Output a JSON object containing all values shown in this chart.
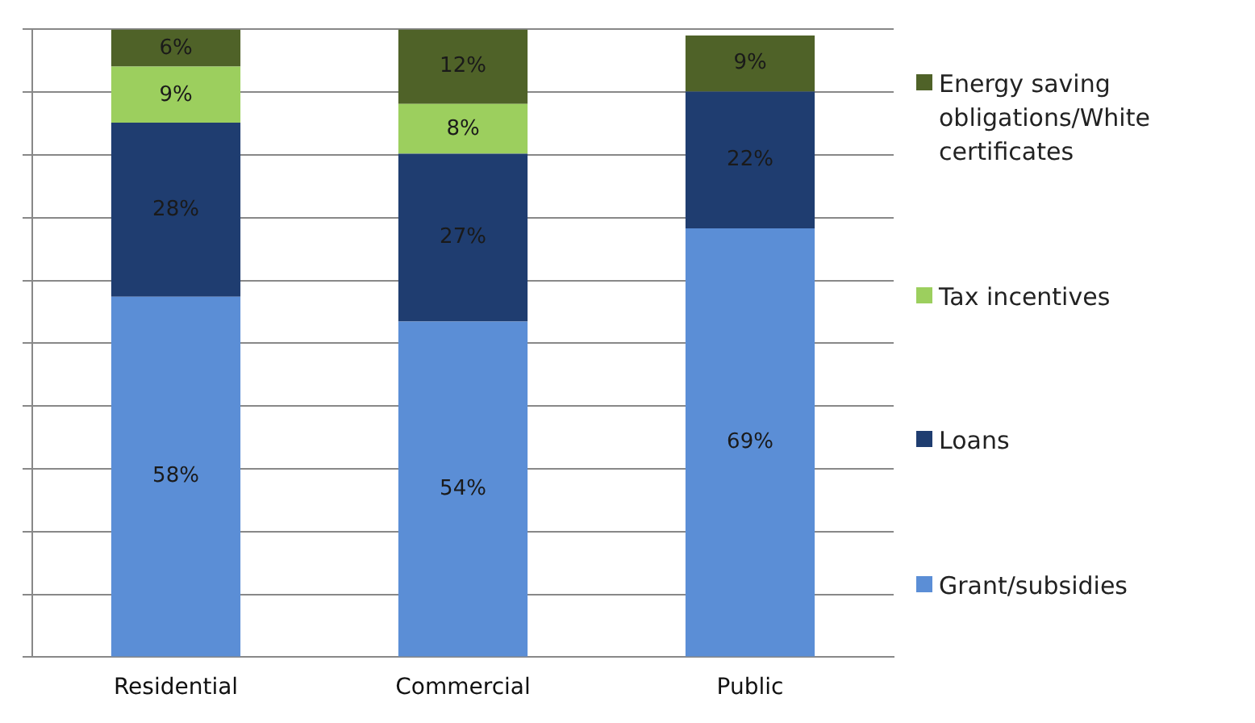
{
  "chart_data": {
    "type": "bar",
    "stacked": true,
    "categories": [
      "Residential",
      "Commercial",
      "Public"
    ],
    "series": [
      {
        "name": "Grant/subsidies",
        "color": "#5b8ed6",
        "values": [
          58,
          54,
          69
        ],
        "value_labels": [
          "58%",
          "54%",
          "69%"
        ]
      },
      {
        "name": "Loans",
        "color": "#1f3d70",
        "values": [
          28,
          27,
          22
        ],
        "value_labels": [
          "28%",
          "27%",
          "22%"
        ]
      },
      {
        "name": "Tax incentives",
        "color": "#9ccf5e",
        "values": [
          9,
          8,
          null
        ],
        "value_labels": [
          "9%",
          "8%",
          null
        ]
      },
      {
        "name": "Energy saving obligations/White certificates",
        "color": "#4f6228",
        "values": [
          6,
          12,
          9
        ],
        "value_labels": [
          "6%",
          "12%",
          "9%"
        ]
      }
    ],
    "grid": "y",
    "legend": "right",
    "tick_labels": "x"
  }
}
